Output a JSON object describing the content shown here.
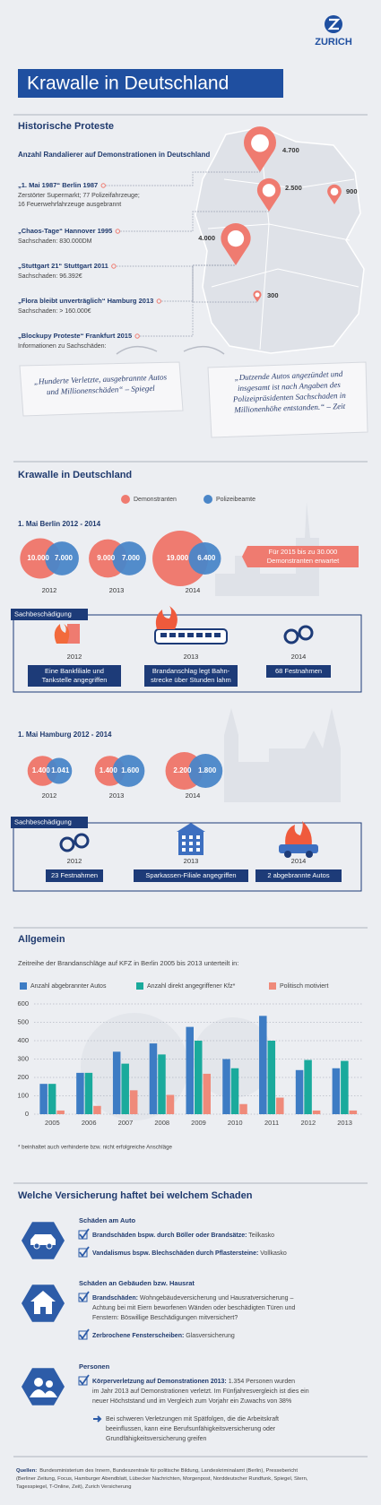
{
  "logo": "ZURICH",
  "title": "Krawalle in Deutschland",
  "historic": {
    "heading": "Historische Proteste",
    "subtitle": "Anzahl Randalierer auf Demonstrationen in Deutschland",
    "pins": [
      {
        "value": 4700,
        "label": "4.700"
      },
      {
        "value": 2500,
        "label": "2.500"
      },
      {
        "value": 900,
        "label": "900"
      },
      {
        "value": 4000,
        "label": "4.000"
      },
      {
        "value": 300,
        "label": "300"
      }
    ],
    "protests": [
      {
        "title": "„1. Mai 1987“ Berlin 1987",
        "lines": [
          "Zerstörter Supermarkt; 77 Polizeifahrzeuge;",
          "16 Feuerwehrfahrzeuge ausgebrannt"
        ]
      },
      {
        "title": "„Chaos-Tage“ Hannover 1995",
        "lines": [
          "Sachschaden: 830.000DM"
        ]
      },
      {
        "title": "„Stuttgart 21“ Stuttgart 2011",
        "lines": [
          "Sachschaden: 96.392€"
        ]
      },
      {
        "title": "„Flora bleibt unverträglich“ Hamburg 2013",
        "lines": [
          "Sachschaden: > 160.000€"
        ]
      },
      {
        "title": "„Blockupy Proteste“ Frankfurt 2015",
        "lines": [
          "Informationen zu Sachschäden:"
        ]
      }
    ],
    "quotes": [
      {
        "lines": [
          "„Hunderte Verletzte, ausgebrannte Autos",
          "und Millionenschäden“ – Spiegel"
        ]
      },
      {
        "lines": [
          "„Dutzende Autos angezündet und",
          "insgesamt ist nach Angaben des",
          "Polizeipräsidenten Sachschaden in",
          "Millionenhöhe entstanden.“ – Zeit"
        ]
      }
    ]
  },
  "riots": {
    "heading": "Krawalle in Deutschland",
    "legend": [
      {
        "name": "Demonstranten",
        "color": "#ef7b70"
      },
      {
        "name": "Polizeibeamte",
        "color": "#4a86c8"
      }
    ],
    "cities": [
      {
        "title": "1. Mai Berlin 2012 - 2014",
        "years": [
          {
            "year": "2012",
            "demonstrators": {
              "value": 10000,
              "label": "10.000"
            },
            "police": {
              "value": 7000,
              "label": "7.000"
            }
          },
          {
            "year": "2013",
            "demonstrators": {
              "value": 9000,
              "label": "9.000"
            },
            "police": {
              "value": 7000,
              "label": "7.000"
            }
          },
          {
            "year": "2014",
            "demonstrators": {
              "value": 19000,
              "label": "19.000"
            },
            "police": {
              "value": 6400,
              "label": "6.400"
            }
          }
        ],
        "callout": [
          "Für 2015 bis zu 30.000",
          "Demonstranten erwartet"
        ],
        "damage": {
          "label": "Sachbeschädigung",
          "items": [
            {
              "year": "2012",
              "caption": [
                "Eine Bankfiliale und",
                "Tankstelle angegriffen"
              ]
            },
            {
              "year": "2013",
              "caption": [
                "Brandanschlag legt Bahn-",
                "strecke über Stunden lahm"
              ]
            },
            {
              "year": "2014",
              "caption": [
                "68 Festnahmen"
              ]
            }
          ]
        }
      },
      {
        "title": "1. Mai Hamburg 2012 - 2014",
        "years": [
          {
            "year": "2012",
            "demonstrators": {
              "value": 1400,
              "label": "1.400"
            },
            "police": {
              "value": 1041,
              "label": "1.041"
            }
          },
          {
            "year": "2013",
            "demonstrators": {
              "value": 1400,
              "label": "1.400"
            },
            "police": {
              "value": 1600,
              "label": "1.600"
            }
          },
          {
            "year": "2014",
            "demonstrators": {
              "value": 2200,
              "label": "2.200"
            },
            "police": {
              "value": 1800,
              "label": "1.800"
            }
          }
        ],
        "damage": {
          "label": "Sachbeschädigung",
          "items": [
            {
              "year": "2012",
              "caption": [
                "23 Festnahmen"
              ]
            },
            {
              "year": "2013",
              "caption": [
                "Sparkassen-Filiale angegriffen"
              ]
            },
            {
              "year": "2014",
              "caption": [
                "2 abgebrannte Autos"
              ]
            }
          ]
        }
      }
    ]
  },
  "general": {
    "heading": "Allgemein"
  },
  "chart_data": {
    "type": "bar",
    "title": "Zeitreihe der Brandanschläge auf KFZ in Berlin 2005 bis 2013 unterteilt in:",
    "categories": [
      "2005",
      "2006",
      "2007",
      "2008",
      "2009",
      "2010",
      "2011",
      "2012",
      "2013"
    ],
    "series": [
      {
        "name": "Anzahl abgebrannter Autos",
        "color": "#3d7cc4",
        "values": [
          165,
          225,
          340,
          385,
          475,
          300,
          535,
          240,
          250
        ]
      },
      {
        "name": "Anzahl direkt angegriffener Kfz*",
        "color": "#1aaa9c",
        "values": [
          165,
          225,
          275,
          325,
          400,
          250,
          400,
          295,
          290
        ]
      },
      {
        "name": "Politisch motiviert",
        "color": "#ef8a7a",
        "values": [
          20,
          45,
          130,
          105,
          220,
          55,
          90,
          20,
          20
        ]
      }
    ],
    "ylim": [
      0,
      600
    ],
    "yticks": [
      0,
      100,
      200,
      300,
      400,
      500,
      600
    ],
    "grid": true,
    "footnote": "* beinhaltet auch verhinderte bzw. nicht erfolgreiche Anschläge"
  },
  "insurance": {
    "heading": "Welche Versicherung haftet bei welchem Schaden",
    "groups": [
      {
        "title": "Schäden am Auto",
        "items": [
          {
            "bold": "Brandschäden bspw. durch Böller oder Brandsätze:",
            "text": " Teilkasko"
          },
          {
            "bold": "Vandalismus bspw. Blechschäden durch Pflastersteine:",
            "text": " Vollkasko"
          }
        ]
      },
      {
        "title": "Schäden an Gebäuden bzw. Hausrat",
        "items": [
          {
            "bold": "Brandschäden:",
            "text": " Wohngebäudeversicherung und Hausratversicherung –",
            "more": [
              "Achtung bei mit Eiern beworfenen Wänden oder beschädigten Türen und",
              "Fenstern: Böswillige Beschädigungen mitversichert?"
            ]
          },
          {
            "bold": "Zerbrochene Fensterscheiben:",
            "text": " Glasversicherung"
          }
        ]
      },
      {
        "title": "Personen",
        "items": [
          {
            "bold": "Körperverletzung auf Demonstrationen 2013:",
            "text": " 1.354 Personen wurden",
            "more": [
              "im Jahr 2013 auf Demonstrationen verletzt. Im Fünfjahresvergleich ist dies ein",
              "neuer Höchststand und im Vergleich zum Vorjahr ein Zuwachs von 38%"
            ]
          }
        ],
        "note": [
          "Bei schweren Verletzungen mit Spätfolgen, die die Arbeitskraft",
          "beeinflussen, kann eine Berufsunfähigkeitsversicherung oder",
          "Grundfähigkeitsversicherung greifen"
        ]
      }
    ]
  },
  "sources": {
    "label": "Quellen:",
    "lines": [
      "Bundesministerium des Innern, Bundeszentrale für politische Bildung, Landeskriminalamt (Berlin), Pressebericht",
      "(Berliner Zeitung, Focus, Hamburger Abendblatt, Lübecker Nachrichten, Morgenpost, Norddeutscher Rundfunk, Spiegel, Stern,",
      "Tagesspiegel, T-Online, Zeit), Zurich Versicherung"
    ]
  }
}
